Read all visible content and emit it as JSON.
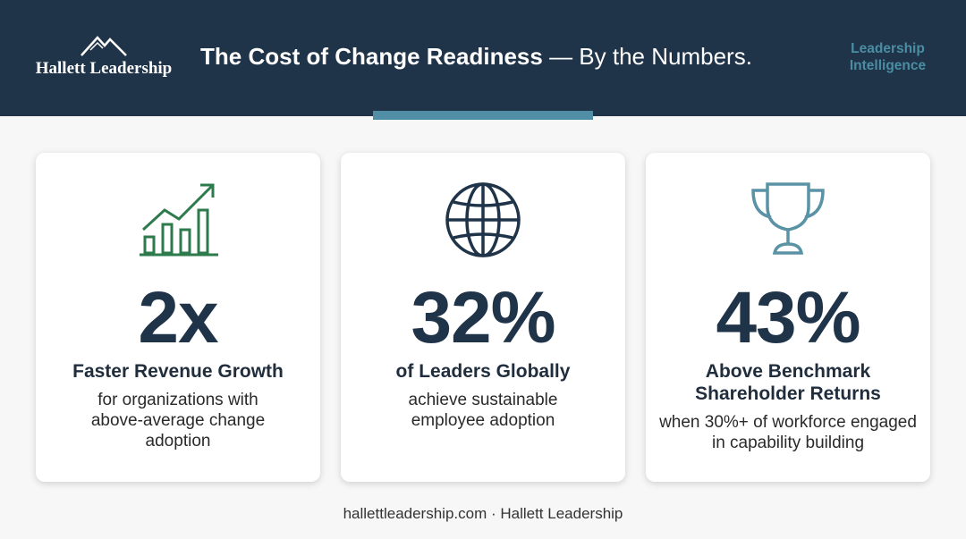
{
  "header": {
    "logo": "Hallett Leadership",
    "title_bold": "The Cost of Change Readiness",
    "title_rest": "— By the Numbers.",
    "tag": "Leadership Intelligence"
  },
  "cards": [
    {
      "stat": "2x",
      "heading": "Faster Revenue Growth",
      "description": "for organizations with above-average change adoption"
    },
    {
      "stat": "32%",
      "heading": "of Leaders Globally",
      "description": "achieve sustainable employee adoption"
    },
    {
      "stat": "43%",
      "heading": "Above Benchmark Shareholder Returns",
      "description": "when 30%+ of workforce engaged in capability building"
    }
  ],
  "footer": "hallettleadership.com · Hallett Leadership"
}
